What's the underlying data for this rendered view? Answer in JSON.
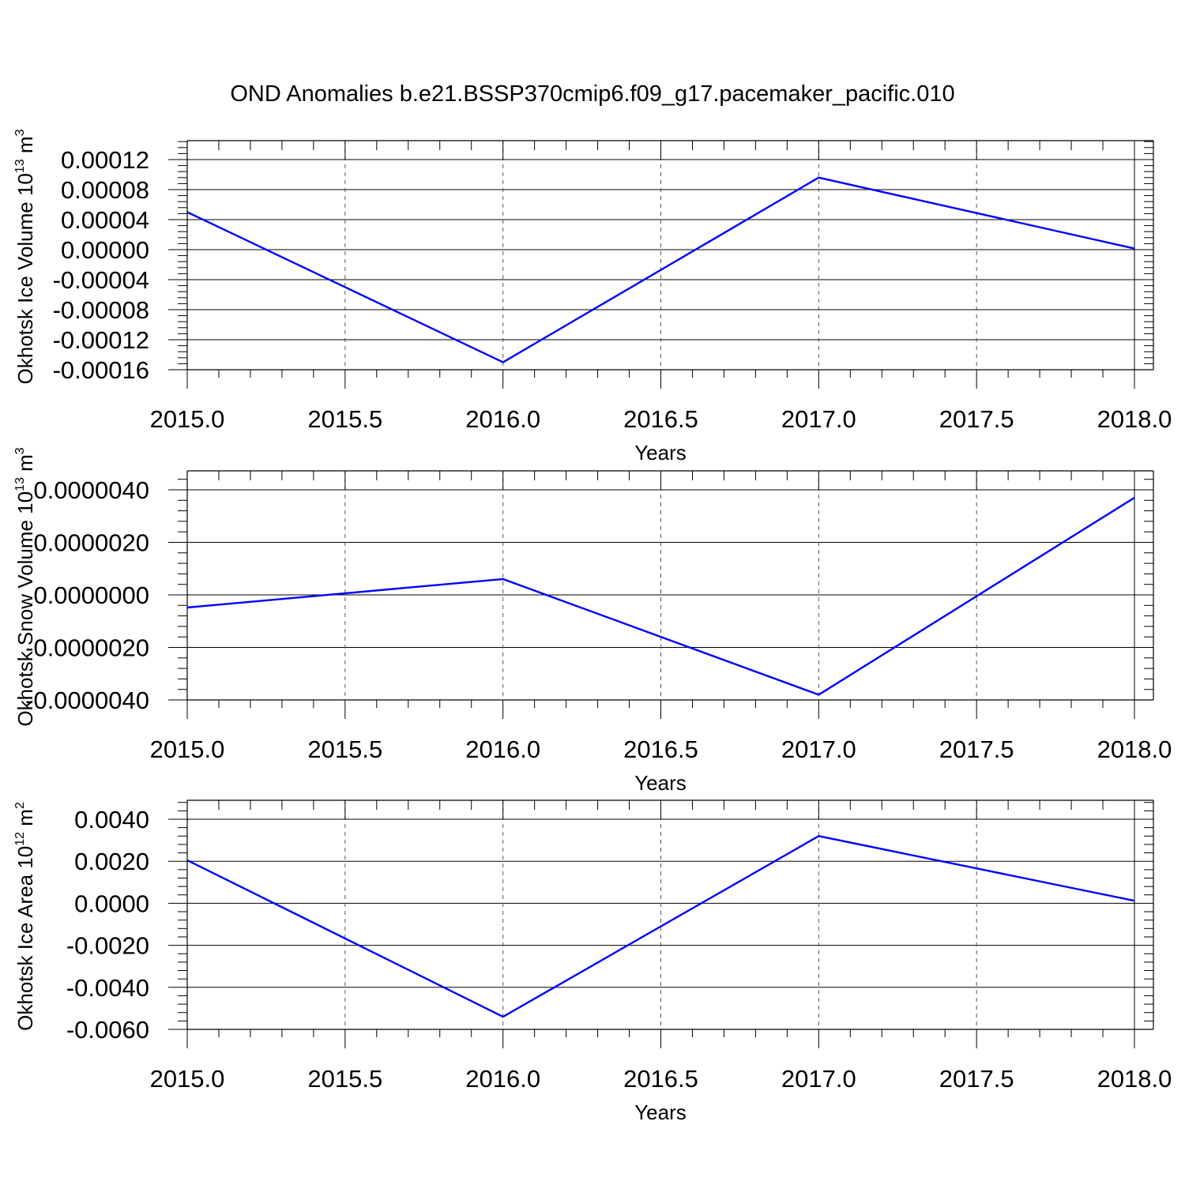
{
  "title": "OND Anomalies b.e21.BSSP370cmip6.f09_g17.pacemaker_pacific.010",
  "style": {
    "line_color": "#0000ff",
    "axis_color": "#000000",
    "grid_color": "#555555"
  },
  "chart_data": [
    {
      "type": "line",
      "x": [
        2015,
        2016,
        2017,
        2018
      ],
      "values": [
        5e-05,
        -0.00015,
        9.6e-05,
        1.5e-06
      ],
      "xlim": [
        2015,
        2018
      ],
      "ylim": [
        -0.00016,
        0.000145
      ],
      "x_ticks": [
        2015,
        2015.5,
        2016,
        2016.5,
        2017,
        2017.5,
        2018
      ],
      "x_tick_labels": [
        "2015.0",
        "2015.5",
        "2016.0",
        "2016.5",
        "2017.0",
        "2017.5",
        "2018.0"
      ],
      "y_ticks": [
        0.00012,
        8e-05,
        4e-05,
        0,
        -4e-05,
        -8e-05,
        -0.00012,
        -0.00016
      ],
      "y_tick_labels": [
        "0.00012",
        "0.00008",
        "0.00004",
        "0.00000",
        "-0.00004",
        "-0.00008",
        "-0.00012",
        "-0.00016"
      ],
      "xlabel": "Years",
      "ylabel_main": "Okhotsk Ice Volume 10",
      "ylabel_exp": "13",
      "ylabel_unit": " m",
      "ylabel_unit_exp": "3",
      "grid": "vertical dashed at major x ticks"
    },
    {
      "type": "line",
      "x": [
        2015,
        2016,
        2017,
        2018
      ],
      "values": [
        -4.8e-07,
        6e-07,
        -3.8e-06,
        3.7e-06
      ],
      "xlim": [
        2015,
        2018
      ],
      "ylim": [
        -4e-06,
        4.7e-06
      ],
      "x_ticks": [
        2015,
        2015.5,
        2016,
        2016.5,
        2017,
        2017.5,
        2018
      ],
      "x_tick_labels": [
        "2015.0",
        "2015.5",
        "2016.0",
        "2016.5",
        "2017.0",
        "2017.5",
        "2018.0"
      ],
      "y_ticks": [
        4e-06,
        2e-06,
        0,
        -2e-06,
        -4e-06
      ],
      "y_tick_labels": [
        "0.0000040",
        "0.0000020",
        "0.0000000",
        "-0.0000020",
        "-0.0000040"
      ],
      "xlabel": "Years",
      "ylabel_main": "Okhotsk Snow Volume 10",
      "ylabel_exp": "13",
      "ylabel_unit": " m",
      "ylabel_unit_exp": "3",
      "grid": "vertical dashed at major x ticks"
    },
    {
      "type": "line",
      "x": [
        2015,
        2016,
        2017,
        2018
      ],
      "values": [
        0.00205,
        -0.0054,
        0.0032,
        0.00012
      ],
      "xlim": [
        2015,
        2018
      ],
      "ylim": [
        -0.006,
        0.0049
      ],
      "x_ticks": [
        2015,
        2015.5,
        2016,
        2016.5,
        2017,
        2017.5,
        2018
      ],
      "x_tick_labels": [
        "2015.0",
        "2015.5",
        "2016.0",
        "2016.5",
        "2017.0",
        "2017.5",
        "2018.0"
      ],
      "y_ticks": [
        0.004,
        0.002,
        0,
        -0.002,
        -0.004,
        -0.006
      ],
      "y_tick_labels": [
        "0.0040",
        "0.0020",
        "0.0000",
        "-0.0020",
        "-0.0040",
        "-0.0060"
      ],
      "xlabel": "Years",
      "ylabel_main": "Okhotsk Ice Area 10",
      "ylabel_exp": "12",
      "ylabel_unit": " m",
      "ylabel_unit_exp": "2",
      "grid": "vertical dashed at major x ticks"
    }
  ]
}
